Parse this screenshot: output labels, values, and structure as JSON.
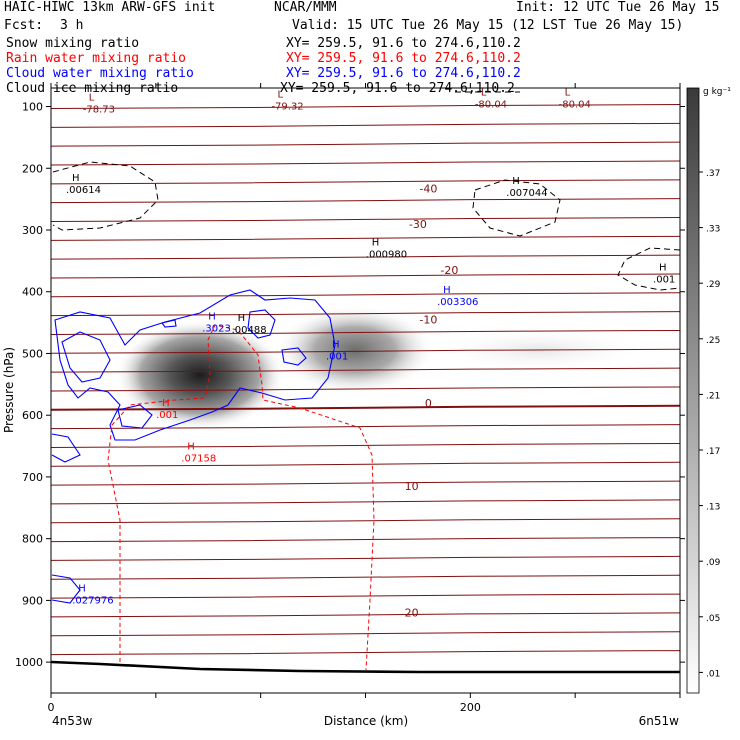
{
  "header": {
    "title": "HAIC-HIWC 13km ARW-GFS init",
    "org": "NCAR/MMM",
    "init": "Init: 12 UTC Tue 26 May 15",
    "fcst_label": "Fcst:",
    "fcst_value": "3 h",
    "valid": "Valid: 15 UTC Tue 26 May 15 (12 LST Tue 26 May 15)"
  },
  "fields": [
    {
      "name": "Snow mixing ratio",
      "xy": "XY= 259.5, 91.6 to 274.6,110.2",
      "color": "#000000"
    },
    {
      "name": "Rain water mixing ratio",
      "xy": "XY= 259.5, 91.6 to 274.6,110.2",
      "color": "#ff0000"
    },
    {
      "name": "Cloud water mixing ratio",
      "xy": "XY= 259.5, 91.6 to 274.6,110.2",
      "color": "#0000ff"
    },
    {
      "name": "Cloud ice mixing ratio",
      "xy": "XY= 259.5, 91.6 to 274.6,110.2",
      "color": "#000000"
    }
  ],
  "colors": {
    "temperature": "#7f1010",
    "rain": "#ff0000",
    "cloud_water": "#0000ff",
    "ice": "#000000"
  },
  "chart_data": {
    "type": "contour",
    "xlabel": "Distance (km)",
    "ylabel": "Pressure (hPa)",
    "xlim": [
      0,
      300
    ],
    "ylim": [
      1050,
      70
    ],
    "x_ticks": [
      0,
      200
    ],
    "y_ticks": [
      100,
      200,
      300,
      400,
      500,
      600,
      700,
      800,
      900,
      1000
    ],
    "x_endpoints": {
      "left": "4n53w",
      "right": "6n51w"
    },
    "colorbar": {
      "unit": "g kg⁻¹",
      "labels": [
        ".37",
        ".33",
        ".29",
        ".25",
        ".21",
        ".17",
        ".13",
        ".09",
        ".05",
        ".01"
      ]
    },
    "temperature_labels": [
      {
        "text": "-40",
        "x": 180,
        "p": 233
      },
      {
        "text": "-30",
        "x": 175,
        "p": 290
      },
      {
        "text": "-20",
        "x": 190,
        "p": 365
      },
      {
        "text": "-10",
        "x": 180,
        "p": 445
      },
      {
        "text": "0",
        "x": 180,
        "p": 580
      },
      {
        "text": "10",
        "x": 172,
        "p": 715
      },
      {
        "text": "20",
        "x": 172,
        "p": 920
      }
    ],
    "extrema": [
      {
        "mark": "L",
        "value": "-78.73",
        "x": 18,
        "p": 100,
        "color": "#7f1010"
      },
      {
        "mark": "L",
        "value": "-79.32",
        "x": 108,
        "p": 95,
        "color": "#7f1010"
      },
      {
        "mark": "L",
        "value": "-80.04",
        "x": 205,
        "p": 92,
        "color": "#7f1010"
      },
      {
        "mark": "L",
        "value": "-80.04",
        "x": 245,
        "p": 92,
        "color": "#7f1010"
      },
      {
        "mark": "H",
        "value": ".00614",
        "x": 10,
        "p": 230,
        "color": "#000000"
      },
      {
        "mark": "H",
        "value": ".007044",
        "x": 220,
        "p": 235,
        "color": "#000000"
      },
      {
        "mark": "H",
        "value": ".000980",
        "x": 153,
        "p": 335,
        "color": "#000000"
      },
      {
        "mark": "H",
        "value": ".001",
        "x": 290,
        "p": 375,
        "color": "#000000"
      },
      {
        "mark": "H",
        "value": ".003306",
        "x": 187,
        "p": 412,
        "color": "#0000ff"
      },
      {
        "mark": "H",
        "value": ".3023",
        "x": 75,
        "p": 455,
        "color": "#0000ff"
      },
      {
        "mark": "H",
        "value": ".00488",
        "x": 89,
        "p": 457,
        "color": "#000000"
      },
      {
        "mark": "H",
        "value": ".001",
        "x": 134,
        "p": 500,
        "color": "#0000ff"
      },
      {
        "mark": "H",
        "value": ".001",
        "x": 53,
        "p": 595,
        "color": "#ff0000"
      },
      {
        "mark": "H",
        "value": ".07158",
        "x": 65,
        "p": 665,
        "color": "#ff0000"
      },
      {
        "mark": "H",
        "value": ".027976",
        "x": 13,
        "p": 895,
        "color": "#0000ff"
      }
    ]
  }
}
